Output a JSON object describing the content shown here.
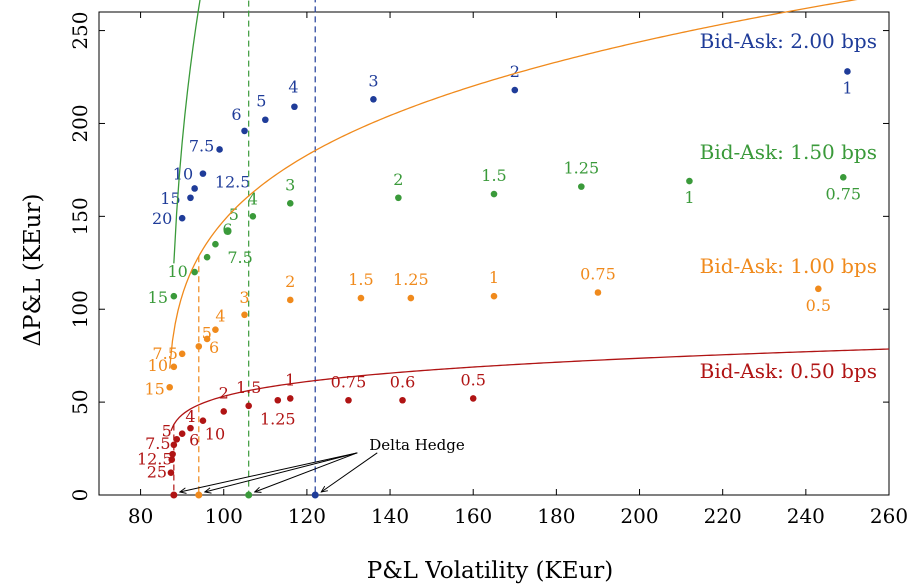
{
  "chart_data": {
    "type": "scatter",
    "title": "",
    "xlabel": "P&L Volatility (KEur)",
    "ylabel": "ΔP&L (KEur)",
    "xlim": [
      70,
      260
    ],
    "ylim": [
      0,
      260
    ],
    "xticks": [
      80,
      100,
      120,
      140,
      160,
      180,
      200,
      220,
      240,
      260
    ],
    "yticks": [
      0,
      50,
      100,
      150,
      200,
      250
    ],
    "grid": false,
    "annotation": {
      "text": "Delta Hedge",
      "x": 135,
      "y": 27
    },
    "series": [
      {
        "name": "Bid-Ask: 2.00 bps",
        "color": "#1f3c99",
        "delta_hedge": {
          "x": 122,
          "y": 0
        },
        "curve": {
          "a": 171.2,
          "b": 0.6545,
          "c": 0.5,
          "x0": 88
        },
        "points": [
          {
            "x": 90,
            "y": 149,
            "label": "20"
          },
          {
            "x": 92,
            "y": 160,
            "label": "15"
          },
          {
            "x": 93,
            "y": 165,
            "label": "12.5"
          },
          {
            "x": 95,
            "y": 173,
            "label": "10"
          },
          {
            "x": 99,
            "y": 186,
            "label": "7.5"
          },
          {
            "x": 105,
            "y": 196,
            "label": "6"
          },
          {
            "x": 110,
            "y": 202,
            "label": "5"
          },
          {
            "x": 117,
            "y": 209,
            "label": "4"
          },
          {
            "x": 136,
            "y": 213,
            "label": "3"
          },
          {
            "x": 170,
            "y": 218,
            "label": "2"
          },
          {
            "x": 250,
            "y": 228,
            "label": "1"
          }
        ]
      },
      {
        "name": "Bid-Ask: 1.50 bps",
        "color": "#3a9a3a",
        "delta_hedge": {
          "x": 106,
          "y": 0
        },
        "curve": {
          "a": 124.2,
          "b": 0.3834,
          "c": 0.5,
          "x0": 87
        },
        "points": [
          {
            "x": 88,
            "y": 107,
            "label": "15"
          },
          {
            "x": 93,
            "y": 120,
            "label": "10"
          },
          {
            "x": 96,
            "y": 128,
            "label": "7.5"
          },
          {
            "x": 98,
            "y": 135,
            "label": "6"
          },
          {
            "x": 101,
            "y": 142,
            "label": "5"
          },
          {
            "x": 107,
            "y": 150,
            "label": "4"
          },
          {
            "x": 116,
            "y": 157,
            "label": "3"
          },
          {
            "x": 142,
            "y": 160,
            "label": "2"
          },
          {
            "x": 165,
            "y": 162,
            "label": "1.5"
          },
          {
            "x": 186,
            "y": 166,
            "label": "1.25"
          },
          {
            "x": 212,
            "y": 169,
            "label": "1"
          },
          {
            "x": 249,
            "y": 171,
            "label": "0.75"
          }
        ]
      },
      {
        "name": "Bid-Ask: 1.00 bps",
        "color": "#f08a1c",
        "delta_hedge": {
          "x": 94,
          "y": 0
        },
        "curve": {
          "a": 79.5,
          "b": 0.2365,
          "c": 0.5,
          "x0": 86.5
        },
        "points": [
          {
            "x": 87,
            "y": 58,
            "label": "15"
          },
          {
            "x": 88,
            "y": 69,
            "label": "10"
          },
          {
            "x": 90,
            "y": 76,
            "label": "7.5"
          },
          {
            "x": 94,
            "y": 80,
            "label": "5"
          },
          {
            "x": 96,
            "y": 84,
            "label": "6"
          },
          {
            "x": 98,
            "y": 89,
            "label": "4"
          },
          {
            "x": 105,
            "y": 97,
            "label": "3"
          },
          {
            "x": 116,
            "y": 105,
            "label": "2"
          },
          {
            "x": 133,
            "y": 106,
            "label": "1.5"
          },
          {
            "x": 145,
            "y": 106,
            "label": "1.25"
          },
          {
            "x": 165,
            "y": 107,
            "label": "1"
          },
          {
            "x": 190,
            "y": 109,
            "label": "0.75"
          },
          {
            "x": 243,
            "y": 111,
            "label": "0.5"
          }
        ]
      },
      {
        "name": "Bid-Ask: 0.50 bps",
        "color": "#b01414",
        "delta_hedge": {
          "x": 88,
          "y": 0
        },
        "curve": {
          "a": 35.2,
          "b": 0.1545,
          "c": 0.5,
          "x0": 86.5
        },
        "points": [
          {
            "x": 87.3,
            "y": 12,
            "label": "25"
          },
          {
            "x": 87.5,
            "y": 19,
            "label": "12.5"
          },
          {
            "x": 87.7,
            "y": 22,
            "label": ""
          },
          {
            "x": 88,
            "y": 27,
            "label": "7.5"
          },
          {
            "x": 88.7,
            "y": 30,
            "label": "5"
          },
          {
            "x": 90,
            "y": 33,
            "label": "6"
          },
          {
            "x": 92,
            "y": 36,
            "label": "4"
          },
          {
            "x": 95,
            "y": 40,
            "label": "10"
          },
          {
            "x": 100,
            "y": 45,
            "label": "2"
          },
          {
            "x": 106,
            "y": 48,
            "label": "1.5"
          },
          {
            "x": 113,
            "y": 51,
            "label": "1.25"
          },
          {
            "x": 116,
            "y": 52,
            "label": "1"
          },
          {
            "x": 130,
            "y": 51,
            "label": "0.75"
          },
          {
            "x": 143,
            "y": 51,
            "label": "0.6"
          },
          {
            "x": 160,
            "y": 52,
            "label": "0.5"
          }
        ]
      }
    ]
  }
}
